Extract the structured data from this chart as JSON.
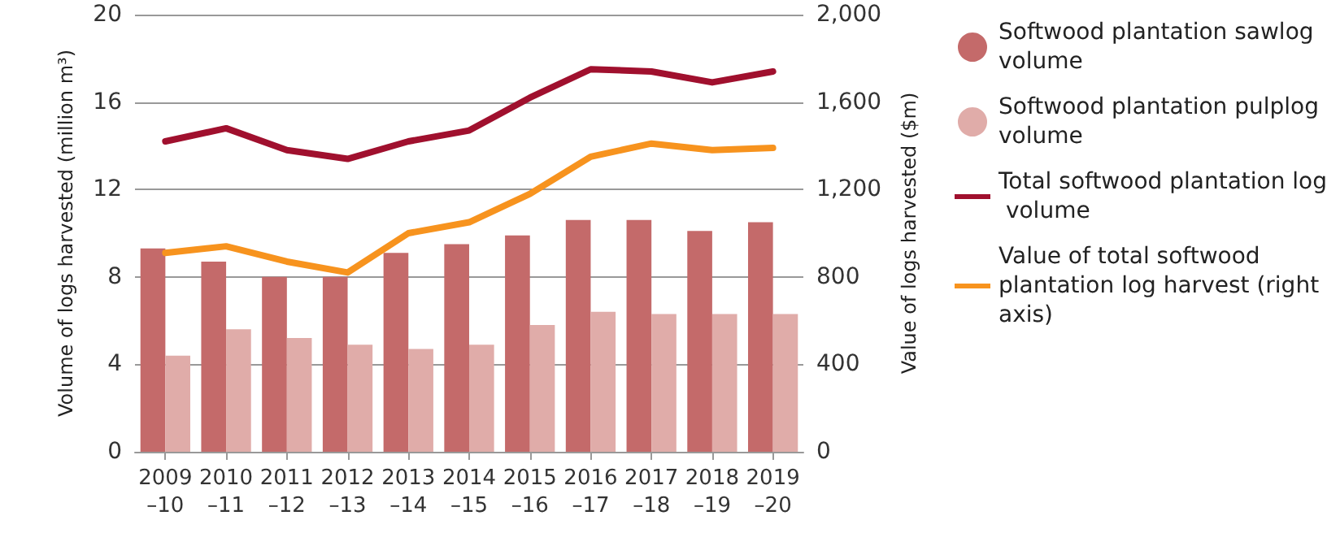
{
  "chart_data": {
    "type": "bar",
    "ylabel": "Volume of logs harvested (million m³)",
    "y2label": "Value of logs harvested ($m)",
    "categories": [
      "2009–10",
      "2010–11",
      "2011–12",
      "2012–13",
      "2013–14",
      "2014–15",
      "2015–16",
      "2016–17",
      "2017–18",
      "2018–19",
      "2019–20"
    ],
    "series": [
      {
        "name": "Softwood plantation sawlog volume",
        "color": "#c46a6a",
        "values": [
          9.3,
          8.7,
          8.0,
          8.0,
          9.1,
          9.5,
          9.9,
          10.6,
          10.6,
          10.1,
          10.5
        ]
      },
      {
        "name": "Softwood plantation pulplog volume",
        "color": "#e0aca9",
        "values": [
          4.4,
          5.6,
          5.2,
          4.9,
          4.7,
          4.9,
          5.8,
          6.4,
          6.3,
          6.3,
          6.3
        ]
      },
      {
        "name": "Total softwood plantation log volume",
        "type": "line",
        "color": "#a0102e",
        "values": [
          14.2,
          14.8,
          13.8,
          13.4,
          14.2,
          14.7,
          16.2,
          17.5,
          17.4,
          16.9,
          17.4
        ]
      },
      {
        "name": "Value of total softwood plantation log harvest (right axis)",
        "type": "line",
        "axis": "y2",
        "color": "#f7931e",
        "values": [
          910,
          940,
          870,
          820,
          1000,
          1050,
          1180,
          1350,
          1410,
          1380,
          1390
        ]
      }
    ],
    "ylim": [
      0,
      20
    ],
    "yticks": [
      0,
      4,
      8,
      12,
      16,
      20
    ],
    "y2lim": [
      0,
      2000
    ],
    "y2ticks": [
      0,
      400,
      800,
      {
        "value": 1200,
        "label": "1,200"
      },
      {
        "value": 1600,
        "label": "1,600"
      },
      {
        "value": 2000,
        "label": "2,000"
      }
    ],
    "grid": "y",
    "legend": "right",
    "marker": "none"
  }
}
